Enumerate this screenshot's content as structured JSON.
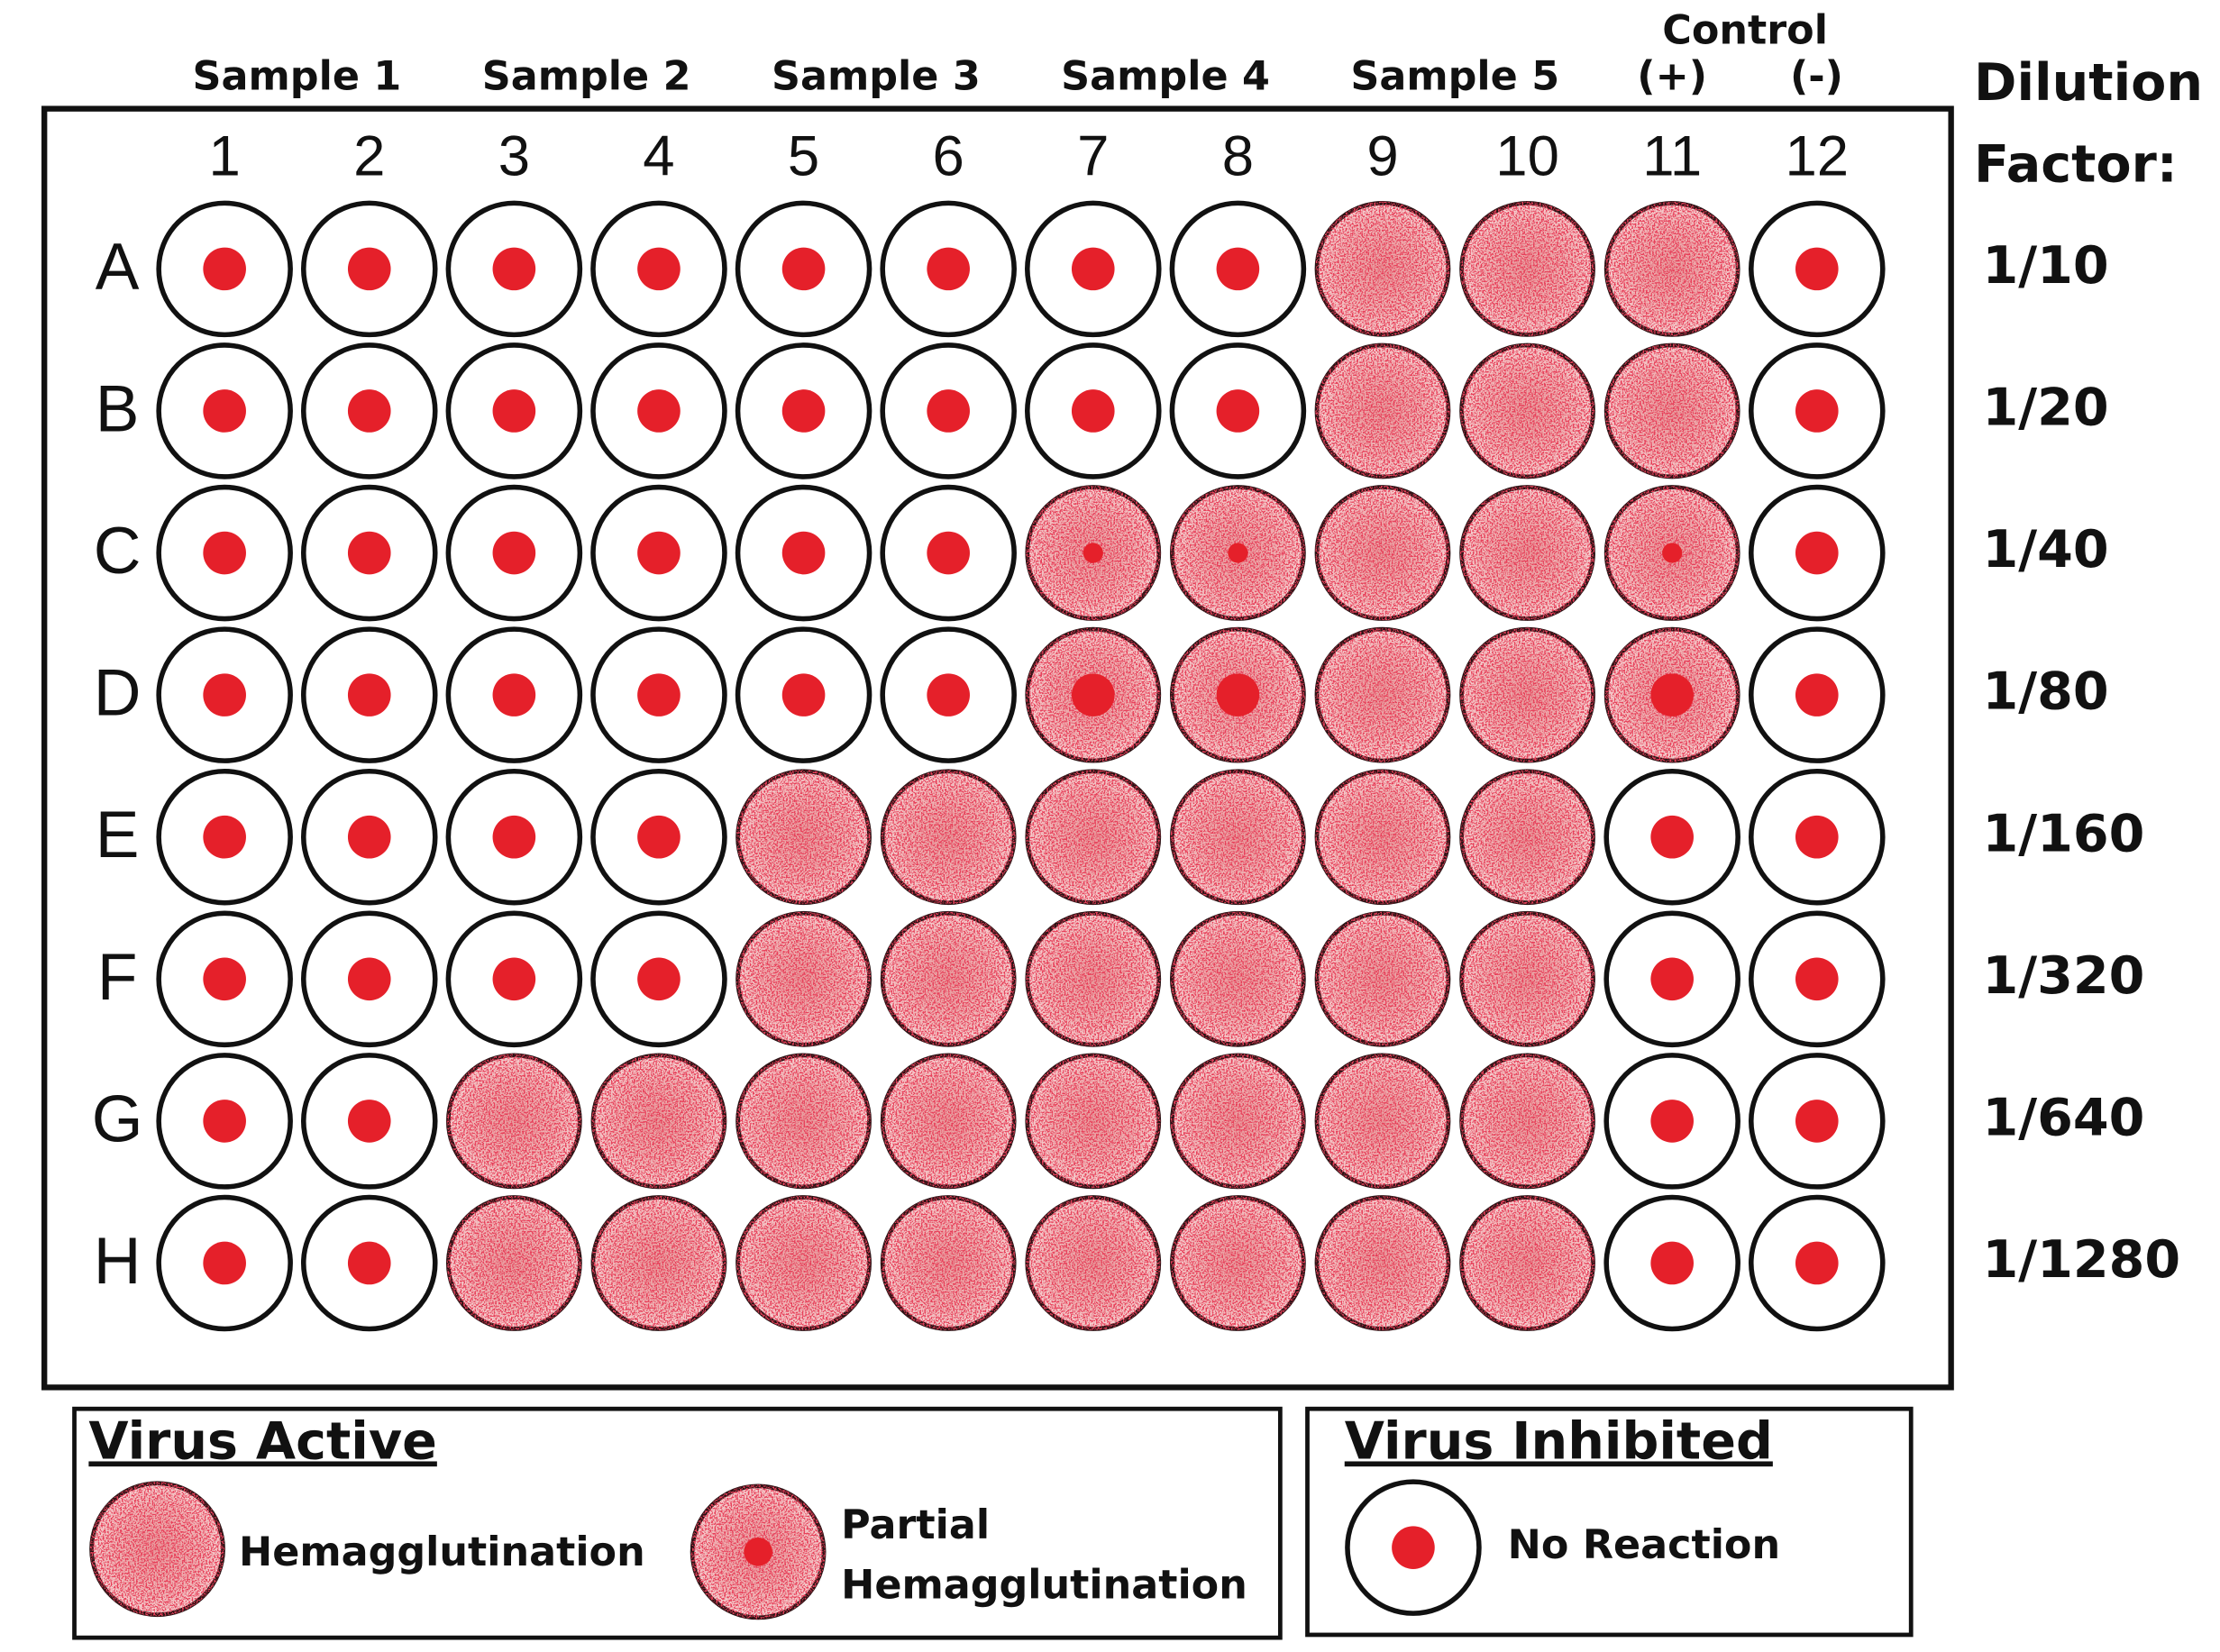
{
  "header": {
    "samples": [
      "Sample 1",
      "Sample 2",
      "Sample 3",
      "Sample 4",
      "Sample 5"
    ],
    "control": "Control",
    "control_positive": "(+)",
    "control_negative": "(-)",
    "dilution_title": [
      "Dilution",
      "Factor:"
    ]
  },
  "plate": {
    "columns": [
      "1",
      "2",
      "3",
      "4",
      "5",
      "6",
      "7",
      "8",
      "9",
      "10",
      "11",
      "12"
    ],
    "rows": [
      "A",
      "B",
      "C",
      "D",
      "E",
      "F",
      "G",
      "H"
    ],
    "dilutions": [
      "1/10",
      "1/20",
      "1/40",
      "1/80",
      "1/160",
      "1/320",
      "1/640",
      "1/1280"
    ]
  },
  "legend": {
    "active": {
      "title": "Virus Active",
      "hemagglutination": "Hemagglutination",
      "partial": [
        "Partial",
        "Hemagglutination"
      ]
    },
    "inhibited": {
      "title": "Virus Inhibited",
      "no_reaction": "No Reaction"
    }
  }
}
